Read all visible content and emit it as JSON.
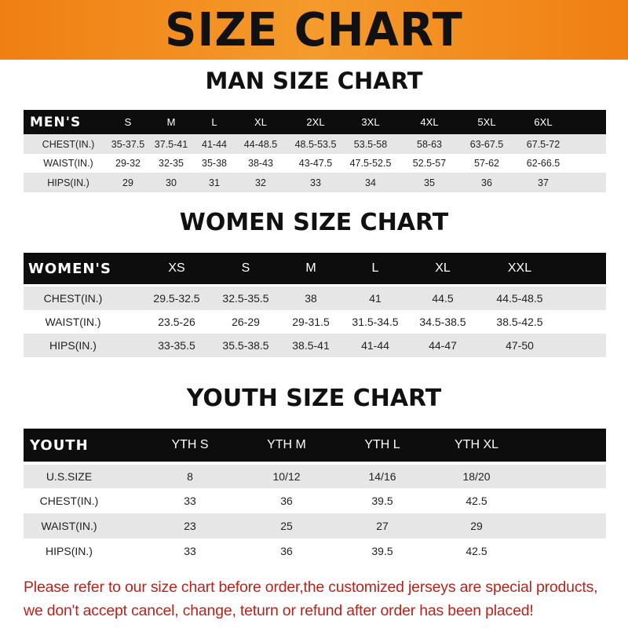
{
  "banner": {
    "title": "SIZE CHART",
    "color": "#f28a1c"
  },
  "men": {
    "title": "MAN SIZE CHART",
    "header": [
      "MEN'S",
      "S",
      "M",
      "L",
      "XL",
      "2XL",
      "3XL",
      "4XL",
      "5XL",
      "6XL"
    ],
    "rows": [
      [
        "CHEST(IN.)",
        "35-37.5",
        "37.5-41",
        "41-44",
        "44-48.5",
        "48.5-53.5",
        "53.5-58",
        "58-63",
        "63-67.5",
        "67.5-72"
      ],
      [
        "WAIST(IN.)",
        "29-32",
        "32-35",
        "35-38",
        "38-43",
        "43-47.5",
        "47.5-52.5",
        "52.5-57",
        "57-62",
        "62-66.5"
      ],
      [
        "HIPS(IN.)",
        "29",
        "30",
        "31",
        "32",
        "33",
        "34",
        "35",
        "36",
        "37"
      ]
    ]
  },
  "women": {
    "title": "WOMEN SIZE CHART",
    "header": [
      "WOMEN'S",
      "XS",
      "S",
      "M",
      "L",
      "XL",
      "XXL"
    ],
    "rows": [
      [
        "CHEST(IN.)",
        "29.5-32.5",
        "32.5-35.5",
        "38",
        "41",
        "44.5",
        "44.5-48.5"
      ],
      [
        "WAIST(IN.)",
        "23.5-26",
        "26-29",
        "29-31.5",
        "31.5-34.5",
        "34.5-38.5",
        "38.5-42.5"
      ],
      [
        "HIPS(IN.)",
        "33-35.5",
        "35.5-38.5",
        "38.5-41",
        "41-44",
        "44-47",
        "47-50"
      ]
    ]
  },
  "youth": {
    "title": "YOUTH SIZE CHART",
    "header": [
      "YOUTH",
      "YTH S",
      "YTH M",
      "YTH L",
      "YTH XL"
    ],
    "rows": [
      [
        "U.S.SIZE",
        "8",
        "10/12",
        "14/16",
        "18/20"
      ],
      [
        "CHEST(IN.)",
        "33",
        "36",
        "39.5",
        "42.5"
      ],
      [
        "WAIST(IN.)",
        "23",
        "25",
        "27",
        "29"
      ],
      [
        "HIPS(IN.)",
        "33",
        "36",
        "39.5",
        "42.5"
      ]
    ]
  },
  "note": {
    "line1": "Please refer to our size chart before order,the customized jerseys are special products,",
    "line2": "we don't accept cancel, change, teturn or refund after order has been placed!",
    "color": "#b3261e"
  }
}
